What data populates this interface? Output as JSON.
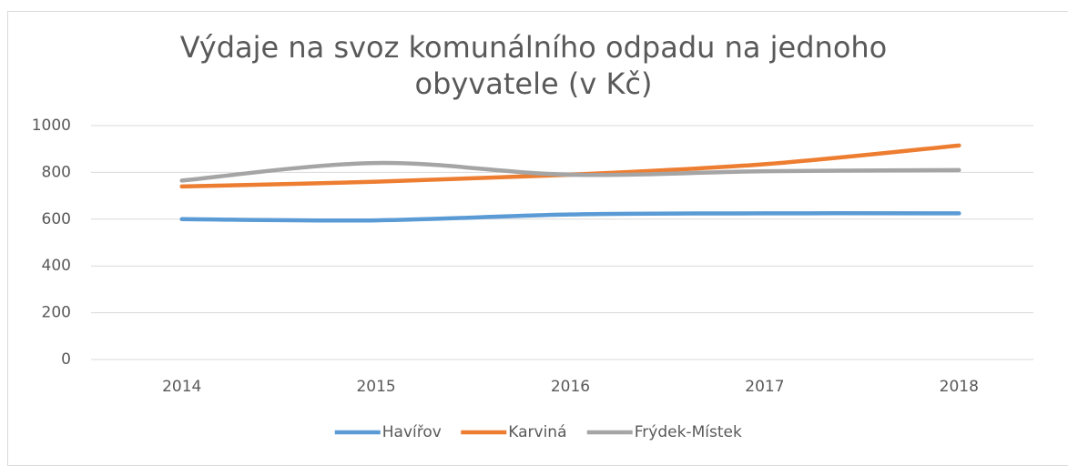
{
  "chart_data": {
    "type": "line",
    "title": "Výdaje na svoz komunálního odpadu na jednoho obyvatele (v Kč)",
    "categories": [
      "2014",
      "2015",
      "2016",
      "2017",
      "2018"
    ],
    "series": [
      {
        "name": "Havířov",
        "color": "#5b9bd5",
        "values": [
          600,
          595,
          620,
          625,
          625
        ]
      },
      {
        "name": "Karviná",
        "color": "#ed7d31",
        "values": [
          740,
          760,
          790,
          835,
          915
        ]
      },
      {
        "name": "Frýdek-Místek",
        "color": "#a5a5a5",
        "values": [
          765,
          840,
          790,
          805,
          810
        ]
      }
    ],
    "ylim": [
      0,
      1000
    ],
    "yticks": [
      0,
      200,
      400,
      600,
      800,
      1000
    ],
    "grid": true,
    "smooth": true,
    "legend": "bottom"
  }
}
